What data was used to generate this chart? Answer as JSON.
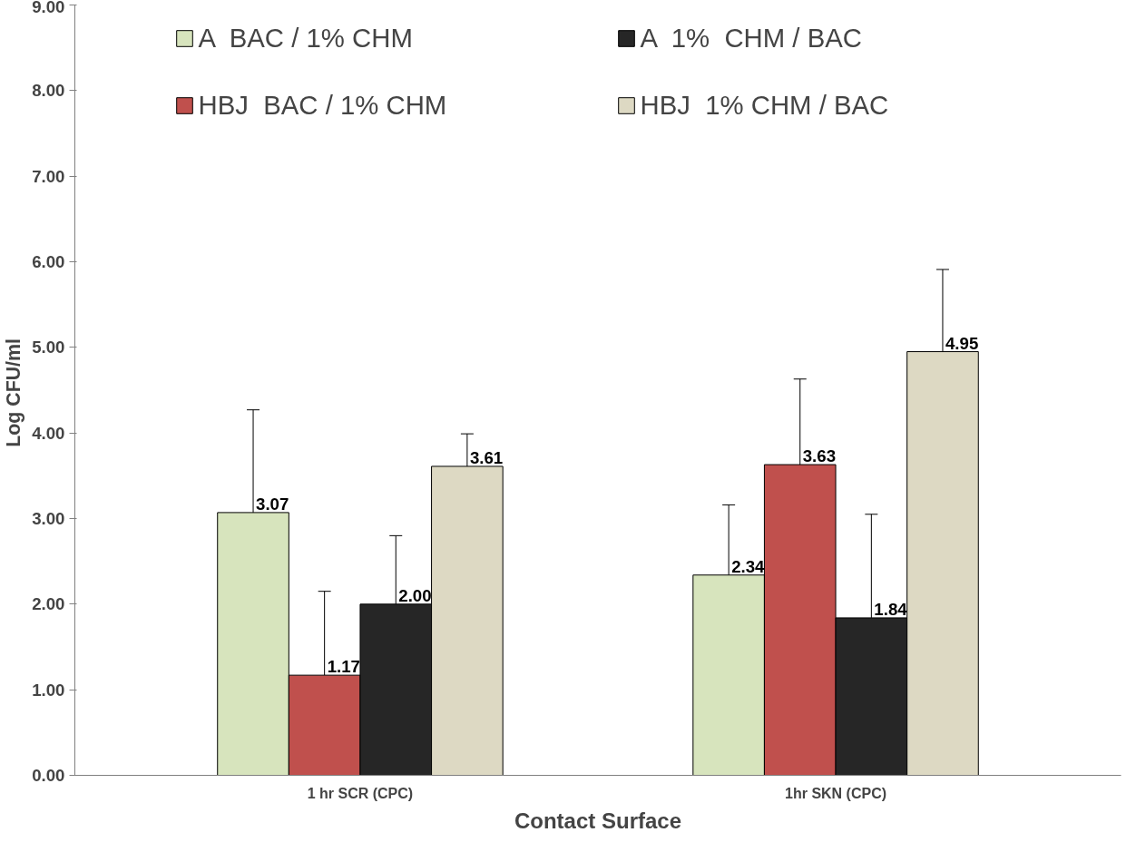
{
  "chart_data": {
    "type": "bar",
    "xlabel": "Contact Surface",
    "ylabel": "Log  CFU/ml",
    "categories": [
      "1 hr SCR (CPC)",
      "1hr SKN (CPC)"
    ],
    "series": [
      {
        "name": "A  BAC / 1% CHM",
        "color": "#d7e4bd",
        "values": [
          3.07,
          2.34
        ],
        "errors": [
          [
            3.07,
            4.27
          ],
          [
            2.34,
            3.16
          ]
        ],
        "value_labels": [
          "3.07",
          "2.34"
        ]
      },
      {
        "name": "HBJ  BAC / 1% CHM",
        "color": "#c0504d",
        "values": [
          1.17,
          3.63
        ],
        "errors": [
          [
            1.17,
            2.15
          ],
          [
            3.63,
            4.63
          ]
        ],
        "value_labels": [
          "1.17",
          "3.63"
        ]
      },
      {
        "name": "A  1%  CHM / BAC",
        "color": "#262626",
        "values": [
          2.0,
          1.84
        ],
        "errors": [
          [
            2.0,
            2.8
          ],
          [
            1.84,
            3.05
          ]
        ],
        "value_labels": [
          "2.00",
          "1.84"
        ]
      },
      {
        "name": "HBJ  1% CHM / BAC",
        "color": "#ddd9c3",
        "values": [
          3.61,
          4.95
        ],
        "errors": [
          [
            3.61,
            3.99
          ],
          [
            4.95,
            5.91
          ]
        ],
        "value_labels": [
          "3.61",
          "4.95"
        ]
      }
    ],
    "ylim": [
      0,
      9
    ],
    "yticks": [
      {
        "value": 0,
        "label": "0.00"
      },
      {
        "value": 1,
        "label": "1.00"
      },
      {
        "value": 2,
        "label": "2.00"
      },
      {
        "value": 3,
        "label": "3.00"
      },
      {
        "value": 4,
        "label": "4.00"
      },
      {
        "value": 5,
        "label": "5.00"
      },
      {
        "value": 6,
        "label": "6.00"
      },
      {
        "value": 7,
        "label": "7.00"
      },
      {
        "value": 8,
        "label": "8.00"
      },
      {
        "value": 9,
        "label": "9.00"
      }
    ],
    "grid": false,
    "legend": "top"
  }
}
